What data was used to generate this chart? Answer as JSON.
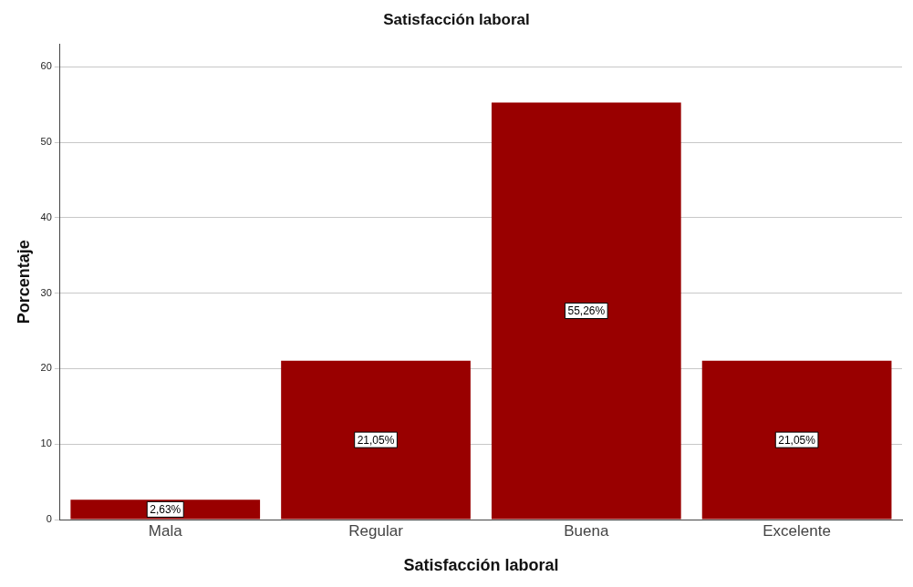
{
  "chart_data": {
    "type": "bar",
    "title": "Satisfacción laboral",
    "xlabel": "Satisfacción laboral",
    "ylabel": "Porcentaje",
    "categories": [
      "Mala",
      "Regular",
      "Buena",
      "Excelente"
    ],
    "values": [
      2.63,
      21.05,
      55.26,
      21.05
    ],
    "value_labels": [
      "2,63%",
      "21,05%",
      "55,26%",
      "21,05%"
    ],
    "color": "#990000",
    "ylim": [
      0,
      63
    ],
    "yticks": [
      0,
      10,
      20,
      30,
      40,
      50,
      60
    ],
    "grid": "y",
    "legend": false
  }
}
